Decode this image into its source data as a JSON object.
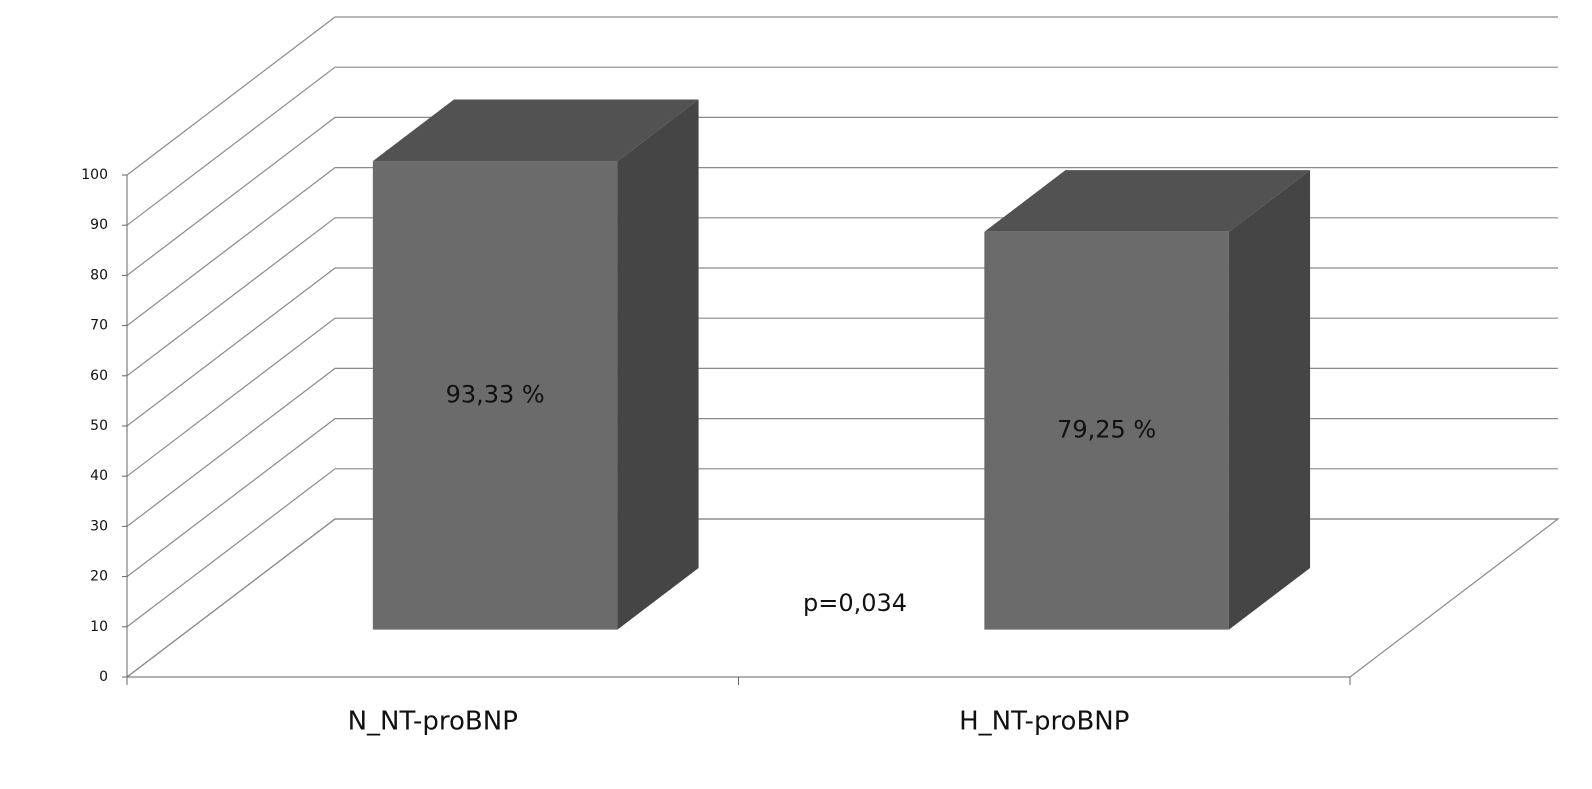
{
  "chart_data": {
    "type": "bar3d",
    "categories": [
      "N_NT-proBNP",
      "H_NT-proBNP"
    ],
    "values": [
      93.33,
      79.25
    ],
    "value_labels": [
      "93,33 %",
      "79,25 %"
    ],
    "annotation": "p=0,034",
    "color": "#6b6b6b",
    "ylim": [
      0,
      100
    ],
    "yticks": [
      0,
      10,
      20,
      30,
      40,
      50,
      60,
      70,
      80,
      90,
      100
    ],
    "grid": true
  }
}
